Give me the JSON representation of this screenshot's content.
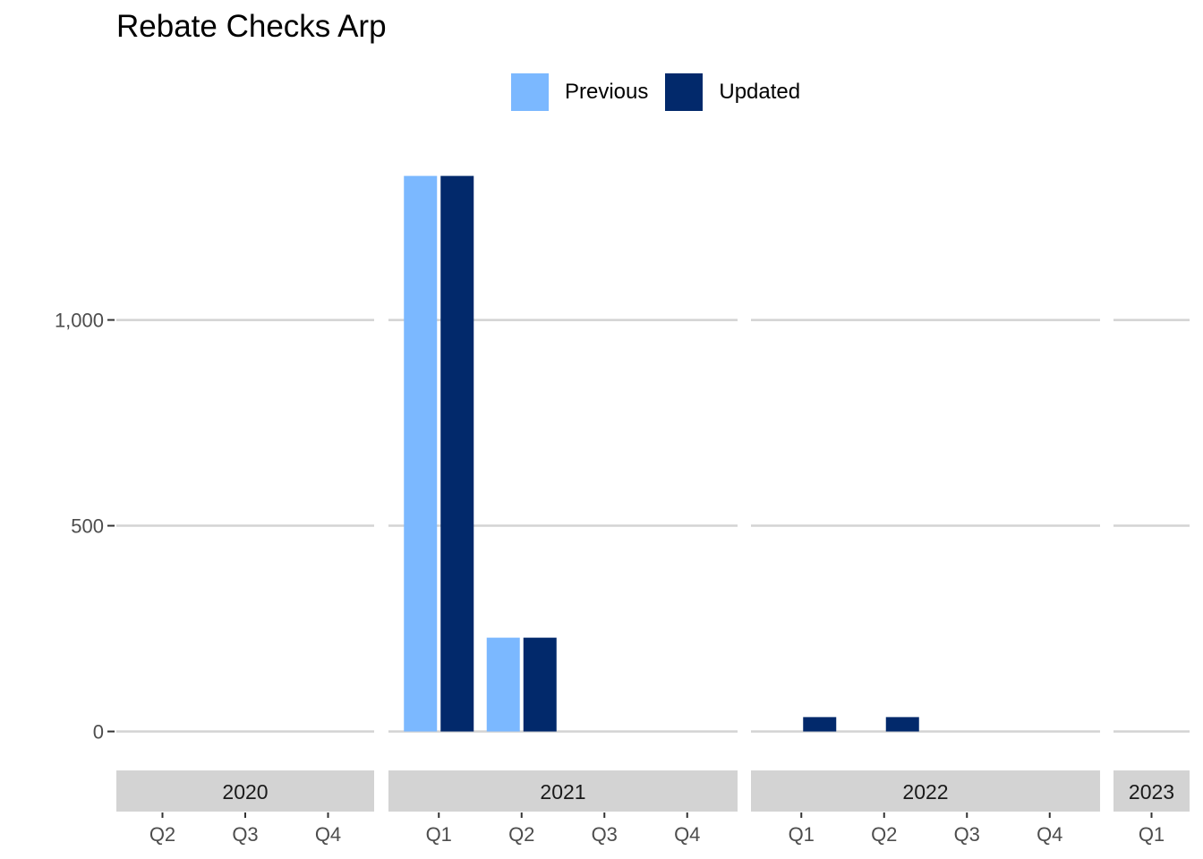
{
  "chart_data": {
    "type": "bar",
    "title": "Rebate Checks Arp",
    "xlabel": "",
    "ylabel": "",
    "ylim": [
      -75,
      1460
    ],
    "yticks": [
      0,
      500,
      1000
    ],
    "ytick_labels": [
      "0",
      "500",
      "1,000"
    ],
    "grid": "horizontal major",
    "legend_position": "top",
    "series": [
      {
        "name": "Previous",
        "color": "#7BB8FF"
      },
      {
        "name": "Updated",
        "color": "#02296B"
      }
    ],
    "facets": [
      {
        "label": "2020",
        "quarters": [
          "Q2",
          "Q3",
          "Q4"
        ],
        "values": {
          "Previous": [
            0,
            0,
            0
          ],
          "Updated": [
            0,
            0,
            0
          ]
        }
      },
      {
        "label": "2021",
        "quarters": [
          "Q1",
          "Q2",
          "Q3",
          "Q4"
        ],
        "values": {
          "Previous": [
            1350,
            228,
            0,
            0
          ],
          "Updated": [
            1350,
            228,
            0,
            0
          ]
        }
      },
      {
        "label": "2022",
        "quarters": [
          "Q1",
          "Q2",
          "Q3",
          "Q4"
        ],
        "values": {
          "Previous": [
            0,
            0,
            0,
            0
          ],
          "Updated": [
            35,
            35,
            0,
            0
          ]
        }
      },
      {
        "label": "2023",
        "quarters": [
          "Q1"
        ],
        "values": {
          "Previous": [
            0
          ],
          "Updated": [
            0
          ]
        }
      }
    ]
  },
  "colors": {
    "grid": "#D3D3D3",
    "strip": "#D3D3D3",
    "axis_text": "#4D4D4D"
  }
}
